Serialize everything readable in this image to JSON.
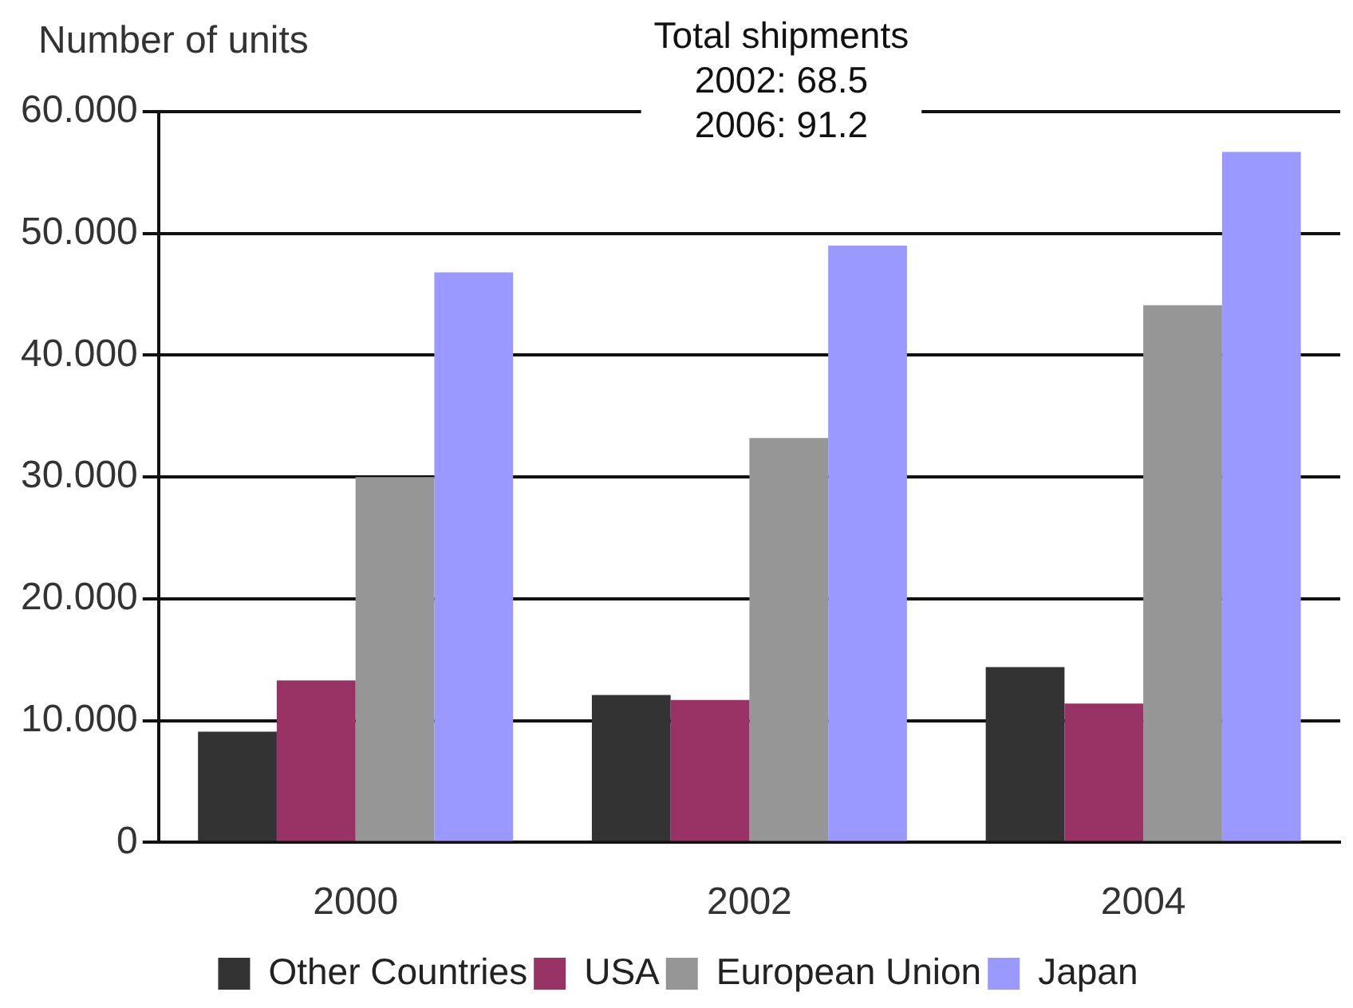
{
  "chart_data": {
    "type": "bar",
    "ylabel": "Number of units",
    "annotations": [
      "Total shipments",
      "2002: 68.5",
      "2006: 91.2"
    ],
    "categories": [
      "2000",
      "2002",
      "2004"
    ],
    "series": [
      {
        "name": "Other Countries",
        "color": "#333333",
        "values": [
          9.1,
          12.1,
          14.4
        ]
      },
      {
        "name": "USA",
        "color": "#993366",
        "values": [
          13.3,
          11.7,
          11.4
        ]
      },
      {
        "name": "European Union",
        "color": "#969696",
        "values": [
          30.0,
          33.2,
          44.1
        ]
      },
      {
        "name": "Japan",
        "color": "#9999ff",
        "values": [
          46.8,
          49.0,
          56.7
        ]
      }
    ],
    "ylim": [
      0,
      60
    ],
    "yticks": [
      0,
      {
        "value": 10,
        "label": "10.000"
      },
      {
        "value": 20,
        "label": "20.000"
      },
      {
        "value": 30,
        "label": "30.000"
      },
      {
        "value": 40,
        "label": "40.000"
      },
      {
        "value": 50,
        "label": "50.000"
      },
      {
        "value": 60,
        "label": "60.000"
      }
    ],
    "grid": "y",
    "legend": "bottom"
  }
}
